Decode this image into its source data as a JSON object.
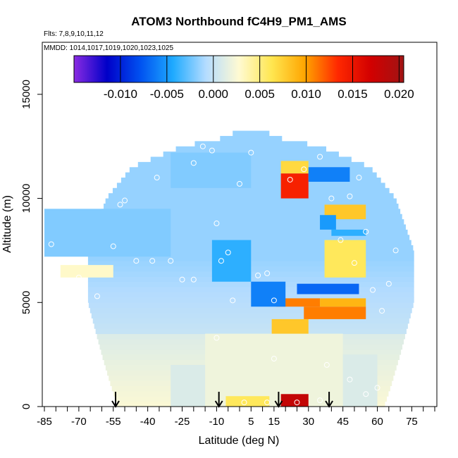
{
  "chart_data": {
    "type": "heatmap",
    "title": "ATOM3 Northbound fC4H9_PM1_AMS",
    "flights_note": "Flts: 7,8,9,10,11,12",
    "dates_note": "MMDD: 1014,1017,1019,1020,1023,1025",
    "xlabel": "Latitude (deg N)",
    "ylabel": "Altitude (m)",
    "xlim": [
      -85,
      85
    ],
    "ylim": [
      0,
      17500
    ],
    "xticks": [
      -85,
      -70,
      -55,
      -40,
      -25,
      -10,
      5,
      15,
      30,
      45,
      60,
      75
    ],
    "xtick_labels": [
      "-85",
      "-70",
      "-55",
      "-40",
      "-25",
      "-10",
      "5",
      "15",
      "30",
      "45",
      "60",
      "75"
    ],
    "yticks": [
      0,
      5000,
      10000,
      15000
    ],
    "ytick_labels": [
      "0",
      "5000",
      "10000",
      "15000"
    ],
    "colorbar": {
      "min": -0.015,
      "max": 0.0205,
      "ticks": [
        -0.01,
        -0.005,
        0.0,
        0.005,
        0.01,
        0.015,
        0.02
      ],
      "tick_labels": [
        "-0.010",
        "-0.005",
        "0.000",
        "0.005",
        "0.010",
        "0.015",
        "0.020"
      ],
      "colors": [
        "#8a2be2",
        "#0000c8",
        "#0050f0",
        "#1eaaff",
        "#b4dcff",
        "#fffad2",
        "#ffe650",
        "#ffa500",
        "#ff2800",
        "#d20000",
        "#a01414"
      ]
    },
    "colors": {
      "fill_default": "#bfe0fb",
      "low_alt_fill": "#f6f6cc"
    },
    "envelope_half_width_deg": [
      [
        0,
        58
      ],
      [
        1000,
        61
      ],
      [
        2500,
        65
      ],
      [
        5000,
        71
      ],
      [
        7500,
        71
      ],
      [
        10000,
        63
      ],
      [
        11500,
        52
      ],
      [
        12500,
        30
      ],
      [
        13000,
        8
      ]
    ],
    "low_alt_patches": [
      {
        "lat": [
          -15,
          45
        ],
        "alt": [
          0,
          3500
        ],
        "value": 0.002
      },
      {
        "lat": [
          -30,
          -15
        ],
        "alt": [
          0,
          2000
        ],
        "value": 0.001
      },
      {
        "lat": [
          45,
          60
        ],
        "alt": [
          0,
          2500
        ],
        "value": 0.001
      }
    ],
    "anomalies": [
      {
        "lat": [
          18,
          30
        ],
        "alt": [
          0,
          600
        ],
        "value": 0.018
      },
      {
        "lat": [
          -6,
          13
        ],
        "alt": [
          0,
          500
        ],
        "value": 0.006
      },
      {
        "lat": [
          14,
          30
        ],
        "alt": [
          3500,
          4200
        ],
        "value": 0.008
      },
      {
        "lat": [
          28,
          55
        ],
        "alt": [
          4200,
          4800
        ],
        "value": 0.011
      },
      {
        "lat": [
          16,
          35
        ],
        "alt": [
          4800,
          5200
        ],
        "value": 0.011
      },
      {
        "lat": [
          35,
          55
        ],
        "alt": [
          4800,
          5200
        ],
        "value": 0.009
      },
      {
        "lat": [
          5,
          20
        ],
        "alt": [
          4800,
          6000
        ],
        "value": -0.006
      },
      {
        "lat": [
          -78,
          -55
        ],
        "alt": [
          6200,
          6800
        ],
        "value": 0.003
      },
      {
        "lat": [
          25,
          52
        ],
        "alt": [
          5400,
          5900
        ],
        "value": -0.007
      },
      {
        "lat": [
          -12,
          5
        ],
        "alt": [
          6000,
          8000
        ],
        "value": -0.004
      },
      {
        "lat": [
          37,
          55
        ],
        "alt": [
          6200,
          8000
        ],
        "value": 0.006
      },
      {
        "lat": [
          40,
          55
        ],
        "alt": [
          8200,
          8500
        ],
        "value": -0.004
      },
      {
        "lat": [
          37,
          55
        ],
        "alt": [
          9000,
          9700
        ],
        "value": 0.008
      },
      {
        "lat": [
          35,
          42
        ],
        "alt": [
          8500,
          9200
        ],
        "value": -0.005
      },
      {
        "lat": [
          18,
          30
        ],
        "alt": [
          10000,
          11200
        ],
        "value": 0.014
      },
      {
        "lat": [
          18,
          30
        ],
        "alt": [
          11200,
          11800
        ],
        "value": 0.007
      },
      {
        "lat": [
          30,
          48
        ],
        "alt": [
          10800,
          11500
        ],
        "value": -0.006
      },
      {
        "lat": [
          -85,
          -30
        ],
        "alt": [
          7200,
          9500
        ],
        "value": -0.002
      },
      {
        "lat": [
          -30,
          5
        ],
        "alt": [
          10500,
          12200
        ],
        "value": -0.002
      }
    ],
    "sample_points": [
      [
        -83,
        10200
      ],
      [
        -82,
        7800
      ],
      [
        -80,
        6500
      ],
      [
        -68,
        10500
      ],
      [
        -58,
        11700
      ],
      [
        -52,
        9700
      ],
      [
        -50,
        9900
      ],
      [
        -45,
        7000
      ],
      [
        -38,
        7000
      ],
      [
        -36,
        11000
      ],
      [
        -30,
        7000
      ],
      [
        -25,
        6100
      ],
      [
        -20,
        6100
      ],
      [
        -12,
        12300
      ],
      [
        -10,
        8800
      ],
      [
        -8,
        7000
      ],
      [
        -5,
        7400
      ],
      [
        -3,
        5100
      ],
      [
        0,
        10700
      ],
      [
        5,
        12200
      ],
      [
        8,
        6300
      ],
      [
        12,
        6400
      ],
      [
        15,
        5100
      ],
      [
        22,
        10900
      ],
      [
        28,
        11400
      ],
      [
        35,
        12000
      ],
      [
        40,
        10000
      ],
      [
        48,
        10100
      ],
      [
        52,
        11000
      ],
      [
        55,
        8400
      ],
      [
        58,
        5600
      ],
      [
        62,
        4600
      ],
      [
        65,
        5900
      ],
      [
        68,
        7500
      ],
      [
        -10,
        3300
      ],
      [
        15,
        2300
      ],
      [
        38,
        2000
      ],
      [
        48,
        1300
      ],
      [
        55,
        600
      ],
      [
        60,
        900
      ],
      [
        2,
        200
      ],
      [
        12,
        200
      ],
      [
        25,
        200
      ],
      [
        35,
        300
      ],
      [
        -55,
        7700
      ],
      [
        -62,
        5300
      ],
      [
        -70,
        6200
      ],
      [
        44,
        8000
      ],
      [
        50,
        6900
      ],
      [
        -20,
        11700
      ],
      [
        -16,
        12500
      ]
    ],
    "arrows_lat": [
      -54,
      -9,
      17,
      39
    ]
  }
}
